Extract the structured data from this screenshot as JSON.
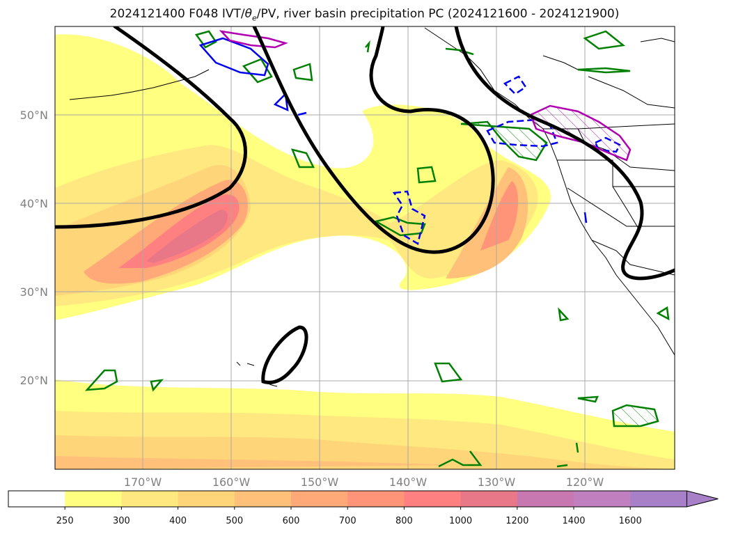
{
  "title": {
    "run": "2024121400 F048 IVT/",
    "theta": "θ",
    "theta_sub": "e",
    "rest": "/PV, river basin precipitation PC (2024121600 - 2024121900)"
  },
  "map": {
    "lon_range": [
      -180,
      -110
    ],
    "lat_range": [
      10,
      60
    ],
    "latitude_labels": [
      {
        "lat": 50,
        "text": "50°N"
      },
      {
        "lat": 40,
        "text": "40°N"
      },
      {
        "lat": 30,
        "text": "30°N"
      },
      {
        "lat": 20,
        "text": "20°N"
      }
    ],
    "longitude_labels": [
      {
        "lon": -170,
        "text": "170°W"
      },
      {
        "lon": -160,
        "text": "160°W"
      },
      {
        "lon": -150,
        "text": "150°W"
      },
      {
        "lon": -140,
        "text": "140°W"
      },
      {
        "lon": -130,
        "text": "130°W"
      },
      {
        "lon": -120,
        "text": "120°W"
      }
    ],
    "gridlines": true,
    "colors": {
      "pv_contour": "#000000",
      "pc_green": "#008000",
      "pc_blue": "#0000ee",
      "pc_magenta": "#b000b0",
      "coastline": "#000000"
    }
  },
  "colorbar": {
    "levels": [
      "250",
      "300",
      "400",
      "500",
      "600",
      "700",
      "800",
      "1000",
      "1200",
      "1400",
      "1600"
    ],
    "colors": [
      "#ffffff",
      "#ffff80",
      "#ffe880",
      "#ffd57a",
      "#ffc07a",
      "#ffa878",
      "#ff9478",
      "#ff8080",
      "#e87888",
      "#c878b0",
      "#c080c0",
      "#a880c8"
    ],
    "extend": "max"
  }
}
